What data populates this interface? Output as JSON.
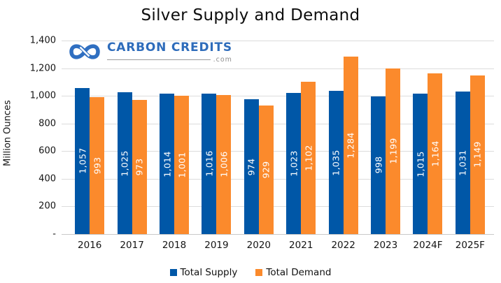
{
  "title": "Silver Supply and Demand",
  "watermark": {
    "brand": "CARBON CREDITS",
    "tld": ".com",
    "brand_color": "#2e6cbb",
    "icon": "infinity-loops-icon",
    "icon_color": "#2f6fc1"
  },
  "colors": {
    "supply_blue": "#0057A7",
    "demand_orange": "#FB8A2C",
    "gridline": "#dcdcdc",
    "axis_line": "#c9c9c9",
    "label_text": "#ffffff"
  },
  "chart_data": {
    "type": "bar",
    "title": "Silver Supply and Demand",
    "xlabel": "",
    "ylabel": "Million Ounces",
    "ylim": [
      0,
      1400
    ],
    "grid": true,
    "legend_position": "bottom",
    "data_labels": "inside-center-rotated-90",
    "categories": [
      "2016",
      "2017",
      "2018",
      "2019",
      "2020",
      "2021",
      "2022",
      "2023",
      "2024F",
      "2025F"
    ],
    "series": [
      {
        "name": "Total Supply",
        "color": "#0057A7",
        "values": [
          1057,
          1025,
          1014,
          1016,
          974,
          1023,
          1035,
          998,
          1015,
          1031
        ],
        "labels": [
          "1,057",
          "1,025",
          "1,014",
          "1,016",
          "974",
          "1,023",
          "1,035",
          "998",
          "1,015",
          "1,031"
        ]
      },
      {
        "name": "Total Demand",
        "color": "#FB8A2C",
        "values": [
          993,
          973,
          1001,
          1006,
          929,
          1102,
          1284,
          1199,
          1164,
          1149
        ],
        "labels": [
          "993",
          "973",
          "1,001",
          "1,006",
          "929",
          "1,102",
          "1,284",
          "1,199",
          "1,164",
          "1,149"
        ]
      }
    ],
    "yticks": [
      {
        "value": 1400,
        "label": "1,400"
      },
      {
        "value": 1200,
        "label": "1,200"
      },
      {
        "value": 1000,
        "label": "1,000"
      },
      {
        "value": 800,
        "label": "800"
      },
      {
        "value": 600,
        "label": "600"
      },
      {
        "value": 400,
        "label": "400"
      },
      {
        "value": 200,
        "label": "200"
      },
      {
        "value": 0,
        "label": "-"
      }
    ]
  }
}
